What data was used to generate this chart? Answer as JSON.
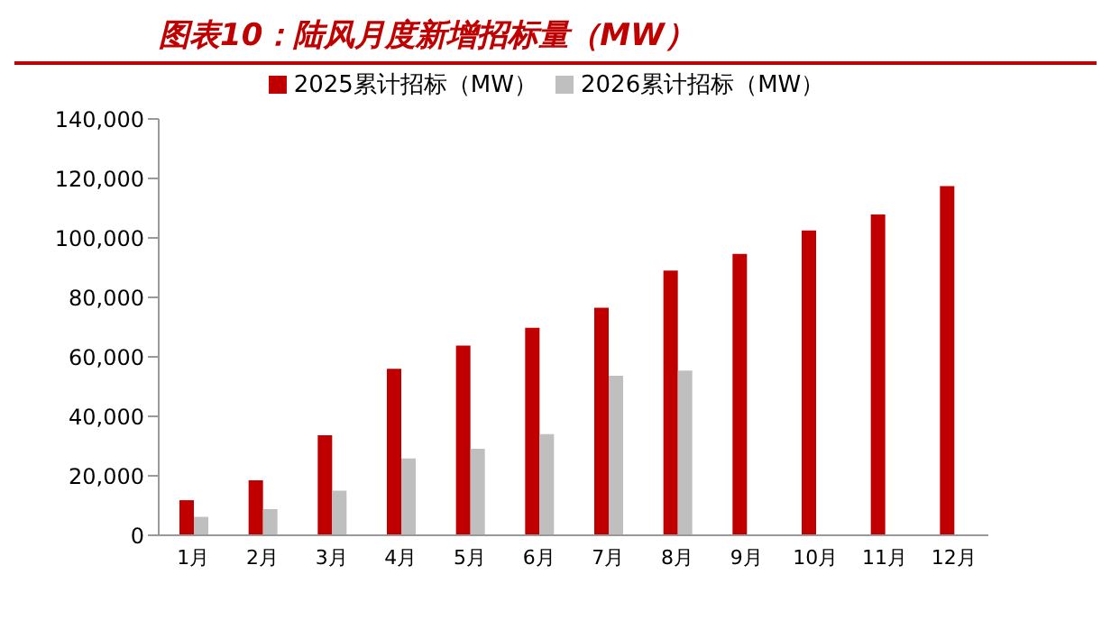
{
  "chart_data": {
    "type": "bar",
    "title": "图表10：陆风月度新增招标量（MW）",
    "categories": [
      "1月",
      "2月",
      "3月",
      "4月",
      "5月",
      "6月",
      "7月",
      "8月",
      "9月",
      "10月",
      "11月",
      "12月"
    ],
    "series": [
      {
        "name": "2025累计招标（MW）",
        "color": "#c00000",
        "values": [
          11800,
          18500,
          33600,
          56000,
          63800,
          69800,
          76500,
          89000,
          94600,
          102500,
          107900,
          117400
        ]
      },
      {
        "name": "2026累计招标（MW）",
        "color": "#bfbfbf",
        "values": [
          6200,
          8800,
          15000,
          25800,
          29100,
          34000,
          53600,
          55400,
          null,
          null,
          null,
          null
        ]
      }
    ],
    "ylim": [
      0,
      140000
    ],
    "yticks": [
      0,
      {
        "value": 20000,
        "label": "20,000"
      },
      {
        "value": 40000,
        "label": "40,000"
      },
      {
        "value": 60000,
        "label": "60,000"
      },
      {
        "value": 80000,
        "label": "80,000"
      },
      {
        "value": 100000,
        "label": "100,000"
      },
      {
        "value": 120000,
        "label": "120,000"
      },
      {
        "value": 140000,
        "label": "140,000"
      }
    ],
    "grid": false,
    "legend": "top"
  }
}
